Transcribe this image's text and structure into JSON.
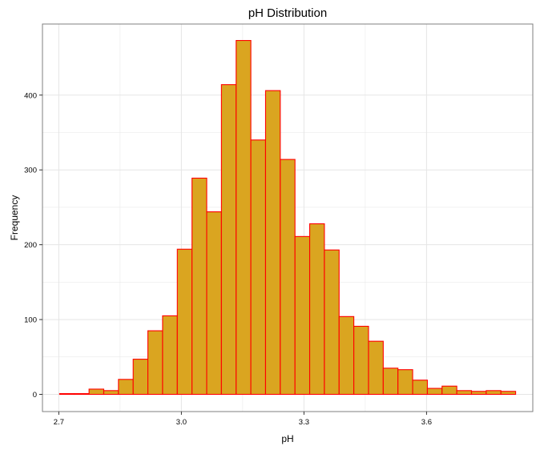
{
  "chart_data": {
    "type": "bar",
    "title": "pH Distribution",
    "xlabel": "pH",
    "ylabel": "Frequency",
    "x_ticks": [
      "2.7",
      "3.0",
      "3.3",
      "3.6"
    ],
    "y_ticks": [
      "0",
      "100",
      "200",
      "300",
      "400"
    ],
    "xlim": [
      2.66,
      3.86
    ],
    "ylim": [
      -23,
      495
    ],
    "bin_width": 0.036,
    "bin_start": 2.702,
    "values": [
      1,
      1,
      7,
      5,
      20,
      47,
      85,
      105,
      194,
      289,
      244,
      414,
      473,
      340,
      406,
      314,
      211,
      228,
      193,
      104,
      91,
      71,
      35,
      33,
      19,
      8,
      11,
      5,
      4,
      5,
      4
    ],
    "grid": true,
    "colors": {
      "fill": "#DAA520",
      "outline": "#FF0000",
      "grid": "#E5E5E5",
      "panel_border": "#7F7F7F"
    }
  }
}
